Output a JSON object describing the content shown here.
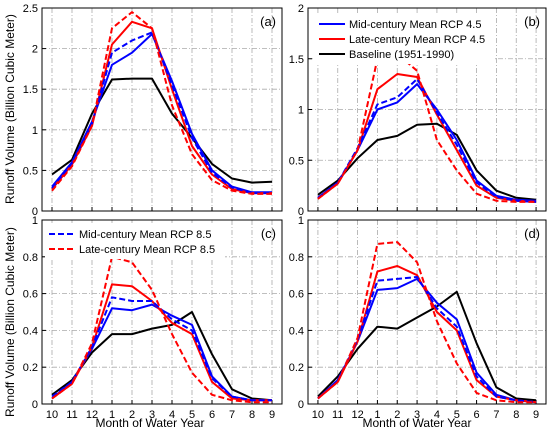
{
  "chart_data": [
    {
      "panel_label": "(a)",
      "type": "line",
      "ylim": [
        0,
        2.5
      ],
      "yticks": [
        "0",
        "0.5",
        "1",
        "1.5",
        "2",
        "2.5"
      ],
      "x": [
        "10",
        "11",
        "12",
        "1",
        "2",
        "3",
        "4",
        "5",
        "6",
        "7",
        "8",
        "9"
      ],
      "xtick_labels_shown": false,
      "ytick_labels_shown": true,
      "series": [
        {
          "key": "baseline",
          "values": [
            0.45,
            0.63,
            1.2,
            1.62,
            1.63,
            1.63,
            1.2,
            0.9,
            0.58,
            0.4,
            0.35,
            0.36
          ]
        },
        {
          "key": "mid45",
          "values": [
            0.3,
            0.6,
            1.1,
            1.8,
            1.95,
            2.18,
            1.6,
            0.95,
            0.5,
            0.3,
            0.23,
            0.23
          ]
        },
        {
          "key": "late45",
          "values": [
            0.27,
            0.57,
            1.05,
            2.05,
            2.33,
            2.25,
            1.5,
            0.8,
            0.45,
            0.27,
            0.22,
            0.22
          ]
        },
        {
          "key": "mid85",
          "values": [
            0.28,
            0.59,
            1.08,
            1.95,
            2.1,
            2.2,
            1.55,
            0.9,
            0.47,
            0.29,
            0.22,
            0.22
          ]
        },
        {
          "key": "late85",
          "values": [
            0.25,
            0.55,
            1.05,
            2.25,
            2.45,
            2.25,
            1.3,
            0.7,
            0.38,
            0.25,
            0.21,
            0.21
          ]
        }
      ]
    },
    {
      "panel_label": "(b)",
      "type": "line",
      "ylim": [
        0,
        2
      ],
      "yticks": [
        "0",
        "0.5",
        "1",
        "1.5",
        "2"
      ],
      "x": [
        "10",
        "11",
        "12",
        "1",
        "2",
        "3",
        "4",
        "5",
        "6",
        "7",
        "8",
        "9"
      ],
      "xtick_labels_shown": false,
      "ytick_labels_shown": true,
      "series": [
        {
          "key": "baseline",
          "values": [
            0.16,
            0.3,
            0.52,
            0.7,
            0.74,
            0.85,
            0.86,
            0.75,
            0.4,
            0.2,
            0.13,
            0.11
          ]
        },
        {
          "key": "mid45",
          "values": [
            0.13,
            0.28,
            0.6,
            1.0,
            1.07,
            1.25,
            1.0,
            0.7,
            0.3,
            0.15,
            0.11,
            0.1
          ]
        },
        {
          "key": "late45",
          "values": [
            0.12,
            0.27,
            0.6,
            1.2,
            1.35,
            1.32,
            0.95,
            0.6,
            0.25,
            0.13,
            0.1,
            0.09
          ]
        },
        {
          "key": "mid85",
          "values": [
            0.13,
            0.28,
            0.62,
            1.05,
            1.12,
            1.3,
            0.97,
            0.65,
            0.28,
            0.14,
            0.1,
            0.09
          ]
        },
        {
          "key": "late85",
          "values": [
            0.12,
            0.27,
            0.6,
            1.5,
            1.55,
            1.38,
            0.7,
            0.4,
            0.17,
            0.1,
            0.09,
            0.09
          ]
        }
      ]
    },
    {
      "panel_label": "(c)",
      "type": "line",
      "ylim": [
        0,
        1
      ],
      "yticks": [
        "0",
        "0.2",
        "0.4",
        "0.6",
        "0.8",
        "1"
      ],
      "x": [
        "10",
        "11",
        "12",
        "1",
        "2",
        "3",
        "4",
        "5",
        "6",
        "7",
        "8",
        "9"
      ],
      "xtick_labels_shown": true,
      "ytick_labels_shown": true,
      "series": [
        {
          "key": "baseline",
          "values": [
            0.05,
            0.13,
            0.28,
            0.38,
            0.38,
            0.41,
            0.43,
            0.5,
            0.27,
            0.08,
            0.03,
            0.02
          ]
        },
        {
          "key": "mid45",
          "values": [
            0.03,
            0.12,
            0.3,
            0.52,
            0.51,
            0.54,
            0.48,
            0.43,
            0.15,
            0.04,
            0.02,
            0.02
          ]
        },
        {
          "key": "late45",
          "values": [
            0.03,
            0.11,
            0.31,
            0.65,
            0.64,
            0.56,
            0.44,
            0.38,
            0.12,
            0.03,
            0.02,
            0.02
          ]
        },
        {
          "key": "mid85",
          "values": [
            0.04,
            0.12,
            0.31,
            0.58,
            0.56,
            0.56,
            0.46,
            0.4,
            0.14,
            0.04,
            0.02,
            0.02
          ]
        },
        {
          "key": "late85",
          "values": [
            0.03,
            0.11,
            0.33,
            0.8,
            0.77,
            0.62,
            0.38,
            0.17,
            0.05,
            0.02,
            0.01,
            0.01
          ]
        }
      ]
    },
    {
      "panel_label": "(d)",
      "type": "line",
      "ylim": [
        0,
        1
      ],
      "yticks": [
        "0",
        "0.2",
        "0.4",
        "0.6",
        "0.8",
        "1"
      ],
      "x": [
        "10",
        "11",
        "12",
        "1",
        "2",
        "3",
        "4",
        "5",
        "6",
        "7",
        "8",
        "9"
      ],
      "xtick_labels_shown": true,
      "ytick_labels_shown": true,
      "series": [
        {
          "key": "baseline",
          "values": [
            0.04,
            0.15,
            0.3,
            0.42,
            0.41,
            0.47,
            0.53,
            0.61,
            0.33,
            0.09,
            0.03,
            0.02
          ]
        },
        {
          "key": "mid45",
          "values": [
            0.03,
            0.13,
            0.34,
            0.62,
            0.63,
            0.68,
            0.55,
            0.46,
            0.17,
            0.05,
            0.02,
            0.01
          ]
        },
        {
          "key": "late45",
          "values": [
            0.03,
            0.12,
            0.34,
            0.72,
            0.75,
            0.7,
            0.5,
            0.4,
            0.13,
            0.04,
            0.02,
            0.01
          ]
        },
        {
          "key": "mid85",
          "values": [
            0.03,
            0.13,
            0.35,
            0.67,
            0.68,
            0.69,
            0.52,
            0.42,
            0.15,
            0.04,
            0.02,
            0.01
          ]
        },
        {
          "key": "late85",
          "values": [
            0.03,
            0.12,
            0.36,
            0.87,
            0.88,
            0.77,
            0.45,
            0.22,
            0.06,
            0.02,
            0.01,
            0.01
          ]
        }
      ]
    }
  ],
  "styles": {
    "baseline": {
      "color": "#000000",
      "dash": false
    },
    "mid45": {
      "color": "#0000ff",
      "dash": false
    },
    "late45": {
      "color": "#ff0000",
      "dash": false
    },
    "mid85": {
      "color": "#0000ff",
      "dash": true
    },
    "late85": {
      "color": "#ff0000",
      "dash": true
    }
  },
  "legend_top": {
    "position": "top-right of panel (b)",
    "entries": [
      {
        "key": "mid45",
        "label": "Mid-century Mean RCP 4.5"
      },
      {
        "key": "late45",
        "label": "Late-century Mean RCP 4.5"
      },
      {
        "key": "baseline",
        "label": "Baseline (1951-1990)"
      }
    ]
  },
  "legend_bottom": {
    "position": "top-left of panel (c)",
    "entries": [
      {
        "key": "mid85",
        "label": "Mid-century Mean RCP 8.5"
      },
      {
        "key": "late85",
        "label": "Late-century Mean RCP 8.5"
      }
    ]
  },
  "ylabel_top": "Runoff Volume (Billion Cubic Meter)",
  "ylabel_bottom": "Runoff Volume (Billion Cubic Meter)",
  "xlabel_left": "Month of Water Year",
  "xlabel_right": "Month of Water Year",
  "grid": "dash-dot gray, on"
}
